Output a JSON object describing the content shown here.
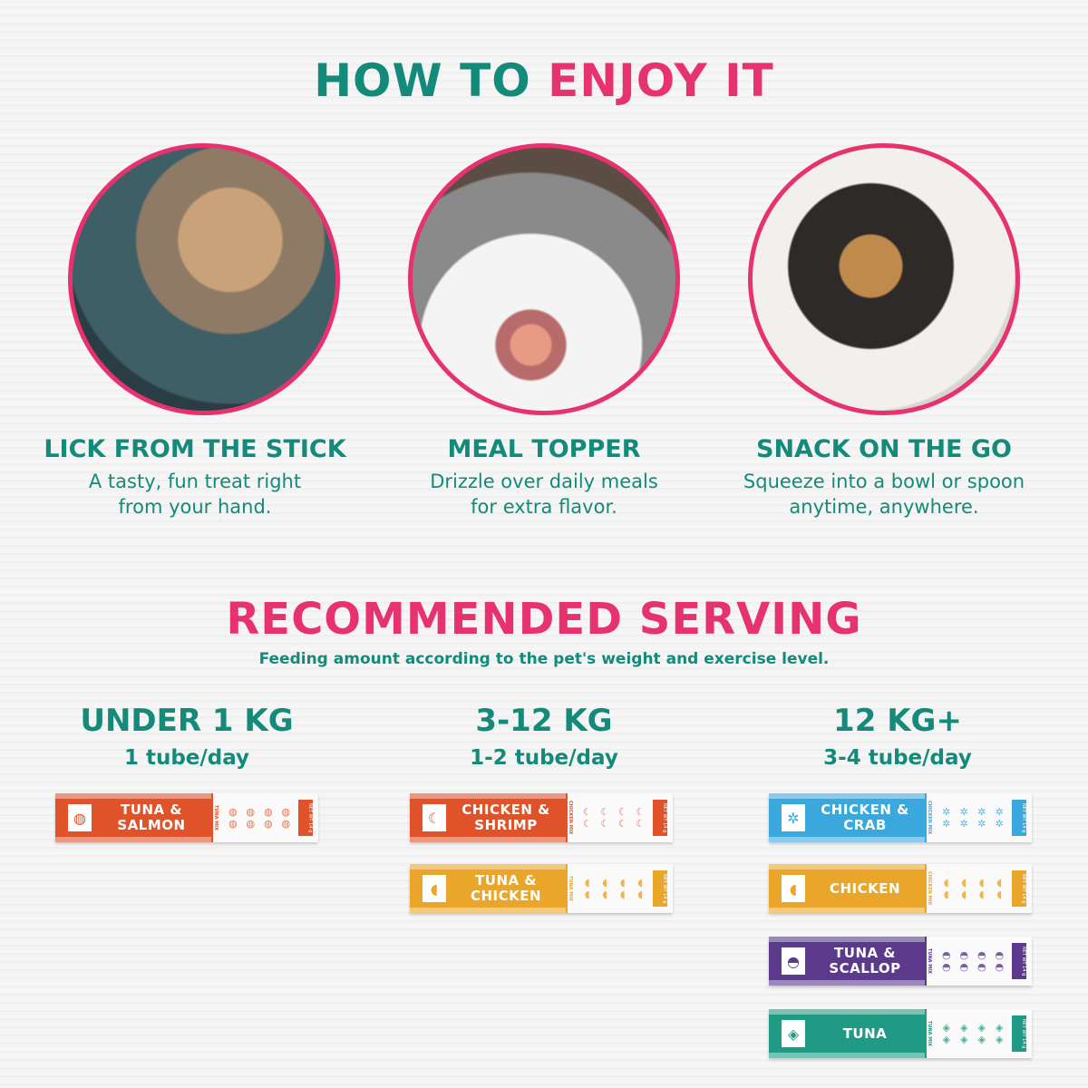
{
  "title": {
    "part1": "HOW TO",
    "part2": "ENJOY IT"
  },
  "steps": [
    {
      "title": "LICK FROM THE STICK",
      "line1": "A tasty, fun treat right",
      "line2": "from your hand."
    },
    {
      "title": "MEAL TOPPER",
      "line1": "Drizzle over daily meals",
      "line2": "for extra flavor."
    },
    {
      "title": "SNACK ON THE GO",
      "line1": "Squeeze into a bowl or spoon",
      "line2": "anytime, anywhere."
    }
  ],
  "serving": {
    "title": "RECOMMENDED SERVING",
    "subtitle": "Feeding amount according to the pet's weight and exercise level.",
    "columns": [
      {
        "weight": "UNDER 1 KG",
        "amount": "1 tube/day",
        "tubes": [
          {
            "label": "TUNA & SALMON",
            "mix": "TUNA MIX",
            "color": "#e0532a",
            "icon": "salmon-icon",
            "glyph": "◍"
          }
        ]
      },
      {
        "weight": "3-12 KG",
        "amount": "1-2 tube/day",
        "tubes": [
          {
            "label": "CHICKEN & SHRIMP",
            "mix": "CHICKEN MIX",
            "color": "#e0532a",
            "icon": "shrimp-icon",
            "glyph": "☾"
          },
          {
            "label": "TUNA & CHICKEN",
            "mix": "TUNA MIX",
            "color": "#eaa62a",
            "icon": "chicken-icon",
            "glyph": "◖"
          }
        ]
      },
      {
        "weight": "12 KG+",
        "amount": "3-4 tube/day",
        "tubes": [
          {
            "label": "CHICKEN & CRAB",
            "mix": "CHICKEN MIX",
            "color": "#3aa8dc",
            "icon": "crab-icon",
            "glyph": "✲"
          },
          {
            "label": "CHICKEN",
            "mix": "CHICKEN MIX",
            "color": "#eaa62a",
            "icon": "chicken-icon",
            "glyph": "◖"
          },
          {
            "label": "TUNA & SCALLOP",
            "mix": "TUNA MIX",
            "color": "#5b3a8c",
            "icon": "scallop-icon",
            "glyph": "◓"
          },
          {
            "label": "TUNA",
            "mix": "TUNA MIX",
            "color": "#1f9a85",
            "icon": "fish-icon",
            "glyph": "◈"
          }
        ]
      }
    ]
  },
  "net_weight": "NET WT 14 g",
  "colors": {
    "teal": "#138a7a",
    "pink": "#e6336f"
  }
}
